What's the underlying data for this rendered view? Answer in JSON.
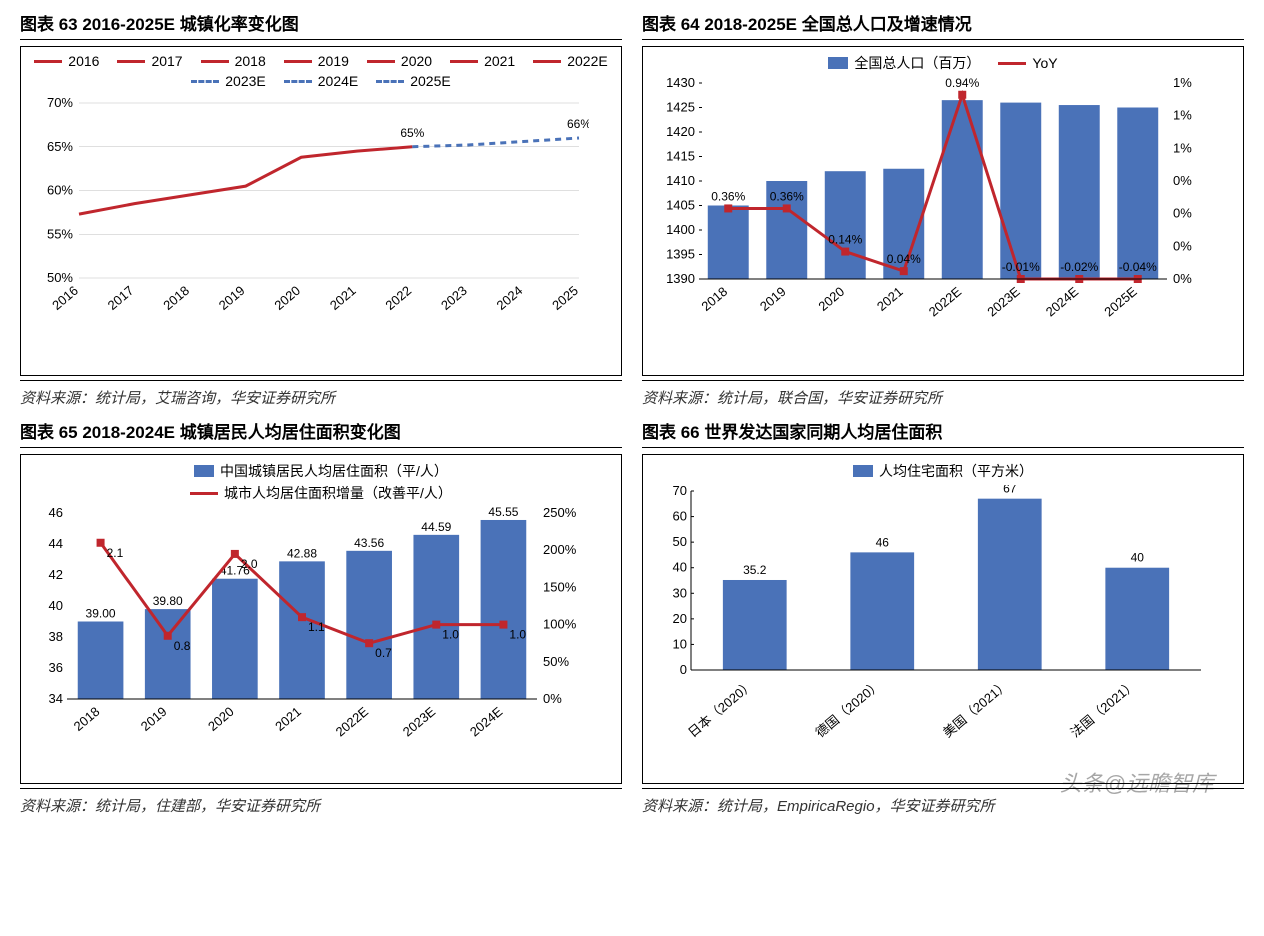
{
  "colors": {
    "red": "#c0262d",
    "blue": "#4a72b8",
    "axis": "#000000",
    "grid": "#bfbfbf",
    "box_border": "#000000"
  },
  "watermark": "头条@远瞻智库",
  "chart63": {
    "title": "图表 63 2016-2025E 城镇化率变化图",
    "source": "资料来源：统计局，艾瑞咨询，华安证券研究所",
    "type": "line",
    "legend": [
      "2016",
      "2017",
      "2018",
      "2019",
      "2020",
      "2021",
      "2022E",
      "2023E",
      "2024E",
      "2025E"
    ],
    "legend_solid_count": 7,
    "x": [
      "2016",
      "2017",
      "2018",
      "2019",
      "2020",
      "2021",
      "2022",
      "2023",
      "2024",
      "2025"
    ],
    "y": [
      57.3,
      58.5,
      59.5,
      60.5,
      63.8,
      64.5,
      65,
      65.2,
      65.6,
      66
    ],
    "solid_count": 7,
    "ylim": [
      50,
      70
    ],
    "ytick_step": 5,
    "ytick_suffix": "%",
    "annotations": [
      {
        "i": 6,
        "text": "65%",
        "dy": -10
      },
      {
        "i": 9,
        "text": "66%",
        "dy": -10
      }
    ],
    "line_color_solid": "#c0262d",
    "line_color_dash": "#4a72b8",
    "line_width": 3
  },
  "chart64": {
    "title": "图表 64 2018-2025E 全国总人口及增速情况",
    "source": "资料来源：统计局，联合国，华安证券研究所",
    "type": "bar+line",
    "legend_bar": "全国总人口（百万）",
    "legend_line": "YoY",
    "x": [
      "2018",
      "2019",
      "2020",
      "2021",
      "2022E",
      "2023E",
      "2024E",
      "2025E"
    ],
    "bar_values": [
      1405,
      1410,
      1412,
      1412.5,
      1426.5,
      1426,
      1425.5,
      1425
    ],
    "bar_color": "#4a72b8",
    "y1_lim": [
      1390,
      1430
    ],
    "y1_tick_step": 5,
    "line_values": [
      0.36,
      0.36,
      0.14,
      0.04,
      0.94,
      -0.01,
      -0.02,
      -0.04
    ],
    "line_labels": [
      "0.36%",
      "0.36%",
      "0.14%",
      "0.04%",
      "0.94%",
      "-0.01%",
      "-0.02%",
      "-0.04%"
    ],
    "line_color": "#c0262d",
    "y2_lim": [
      0,
      1
    ],
    "y2_ticks": [
      0,
      0,
      0,
      0,
      1,
      1,
      1
    ],
    "y2_tick_labels": [
      "0%",
      "0%",
      "0%",
      "0%",
      "1%",
      "1%",
      "1%"
    ],
    "line_width": 3
  },
  "chart65": {
    "title": "图表 65 2018-2024E 城镇居民人均居住面积变化图",
    "source": "资料来源：统计局，住建部，华安证券研究所",
    "type": "bar+line",
    "legend_bar": "中国城镇居民人均居住面积（平/人）",
    "legend_line": "城市人均居住面积增量（改善平/人）",
    "x": [
      "2018",
      "2019",
      "2020",
      "2021",
      "2022E",
      "2023E",
      "2024E"
    ],
    "bar_values": [
      39.0,
      39.8,
      41.76,
      42.88,
      43.56,
      44.59,
      45.55
    ],
    "bar_labels": [
      "39.00",
      "39.80",
      "41.76",
      "42.88",
      "43.56",
      "44.59",
      "45.55"
    ],
    "bar_color": "#4a72b8",
    "y1_lim": [
      34,
      46
    ],
    "y1_tick_step": 2,
    "line_values": [
      2.1,
      0.8,
      2.0,
      1.1,
      0.7,
      1.0,
      1.0
    ],
    "line_labels": [
      "2.1",
      "0.8",
      "2.0",
      "1.1",
      "0.7",
      "1.0",
      "1.0"
    ],
    "line_color": "#c0262d",
    "y2_lim": [
      0,
      250
    ],
    "y2_tick_step": 50,
    "y2_suffix": "%",
    "line_display_y": [
      210,
      85,
      195,
      110,
      75,
      100,
      100
    ],
    "line_width": 3
  },
  "chart66": {
    "title": "图表 66 世界发达国家同期人均居住面积",
    "source": "资料来源：统计局，EmpiricaRegio，华安证券研究所",
    "type": "bar",
    "legend_bar": "人均住宅面积（平方米）",
    "x": [
      "日本（2020）",
      "德国（2020）",
      "美国（2021）",
      "法国（2021）"
    ],
    "values": [
      35.2,
      46,
      67,
      40
    ],
    "labels": [
      "35.2",
      "46",
      "67",
      "40"
    ],
    "bar_color": "#4a72b8",
    "ylim": [
      0,
      70
    ],
    "ytick_step": 10
  }
}
